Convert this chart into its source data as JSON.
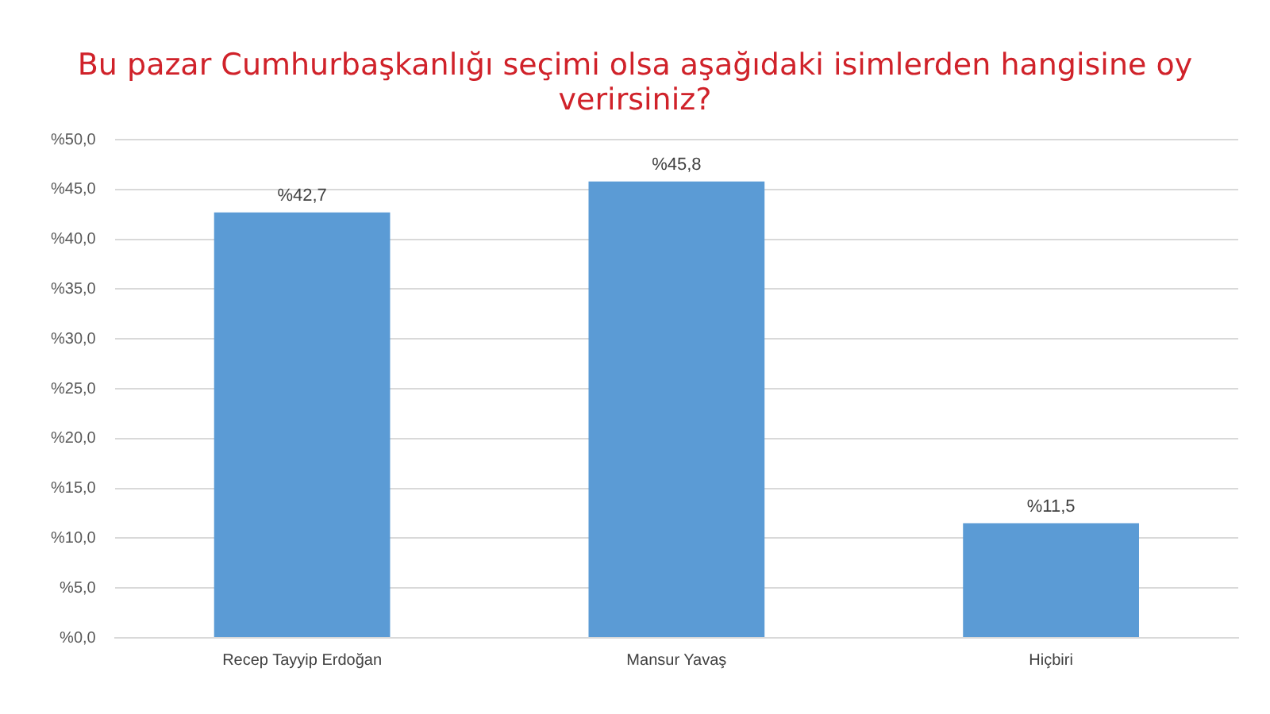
{
  "chart_data": {
    "type": "bar",
    "title": "Bu pazar Cumhurbaşkanlığı seçimi olsa aşağıdaki isimlerden hangisine oy verirsiniz?",
    "categories": [
      "Recep Tayyip Erdoğan",
      "Mansur Yavaş",
      "Hiçbiri"
    ],
    "values": [
      42.7,
      45.8,
      11.5
    ],
    "value_labels": [
      "%42,7",
      "%45,8",
      "%11,5"
    ],
    "color": "#5b9bd5",
    "ylim": [
      0,
      50
    ],
    "yticks": [
      {
        "value": 0,
        "label": "%0,0"
      },
      {
        "value": 5,
        "label": "%5,0"
      },
      {
        "value": 10,
        "label": "%10,0"
      },
      {
        "value": 15,
        "label": "%15,0"
      },
      {
        "value": 20,
        "label": "%20,0"
      },
      {
        "value": 25,
        "label": "%25,0"
      },
      {
        "value": 30,
        "label": "%30,0"
      },
      {
        "value": 35,
        "label": "%35,0"
      },
      {
        "value": 40,
        "label": "%40,0"
      },
      {
        "value": 45,
        "label": "%45,0"
      },
      {
        "value": 50,
        "label": "%50,0"
      }
    ],
    "grid": "y"
  }
}
